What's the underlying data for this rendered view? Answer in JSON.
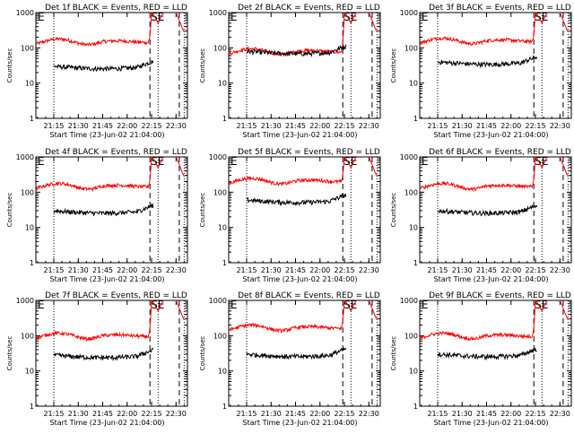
{
  "chart_data": {
    "type": "line",
    "colors": {
      "events": "#000000",
      "lld": "#ff0000",
      "axis": "#000000"
    },
    "layout": "3x3 grid",
    "xlabel": "Start Time (23-Jun-02 21:04:00)",
    "ylabel": "Counts/sec",
    "y_scale": "log",
    "ylim": [
      1,
      1000
    ],
    "y_tick_labels": [
      "1",
      "10",
      "100",
      "1000"
    ],
    "x_tick_labels": [
      "21:15",
      "21:30",
      "21:45",
      "22:00",
      "22:15",
      "22:30"
    ],
    "xlim_minutes_after_start": [
      0,
      93
    ],
    "x_tick_minutes_after_start": [
      11,
      26,
      41,
      56,
      71,
      86
    ],
    "legend": "title",
    "panels": [
      {
        "title": "Det 1f BLACK = Events, RED = LLD",
        "markers": [
          "E",
          "SE"
        ],
        "lld_level": 150,
        "events_level": 30,
        "events_start_min": 11,
        "events_end_min": 72,
        "lld_peak": 1100,
        "dotted_lines_min": [
          11,
          75,
          91
        ],
        "dashed_lines_min": [
          70,
          88
        ]
      },
      {
        "title": "Det 2f BLACK = Events, RED = LLD",
        "markers": [
          "E",
          "SE"
        ],
        "lld_level": 80,
        "events_level": 80,
        "events_start_min": 11,
        "events_end_min": 72,
        "lld_peak": 1100,
        "dotted_lines_min": [
          11,
          75,
          91
        ],
        "dashed_lines_min": [
          70,
          88
        ]
      },
      {
        "title": "Det 3f BLACK = Events, RED = LLD",
        "markers": [
          "E",
          "SE"
        ],
        "lld_level": 160,
        "events_level": 40,
        "events_start_min": 11,
        "events_end_min": 72,
        "lld_peak": 1100,
        "dotted_lines_min": [
          11,
          75,
          91
        ],
        "dashed_lines_min": [
          70,
          88
        ]
      },
      {
        "title": "Det 4f BLACK = Events, RED = LLD",
        "markers": [
          "E",
          "SE"
        ],
        "lld_level": 150,
        "events_level": 30,
        "events_start_min": 11,
        "events_end_min": 72,
        "lld_peak": 1100,
        "dotted_lines_min": [
          11,
          75,
          91
        ],
        "dashed_lines_min": [
          70,
          88
        ]
      },
      {
        "title": "Det 5f BLACK = Events, RED = LLD",
        "markers": [
          "E",
          "SE"
        ],
        "lld_level": 210,
        "events_level": 60,
        "events_start_min": 11,
        "events_end_min": 72,
        "lld_peak": 1100,
        "dotted_lines_min": [
          11,
          75,
          91
        ],
        "dashed_lines_min": [
          70,
          88
        ]
      },
      {
        "title": "Det 6f BLACK = Events, RED = LLD",
        "markers": [
          "E",
          "SE"
        ],
        "lld_level": 150,
        "events_level": 30,
        "events_start_min": 11,
        "events_end_min": 72,
        "lld_peak": 1100,
        "dotted_lines_min": [
          11,
          75,
          91
        ],
        "dashed_lines_min": [
          70,
          88
        ]
      },
      {
        "title": "Det 7f BLACK = Events, RED = LLD",
        "markers": [
          "E",
          "SE"
        ],
        "lld_level": 100,
        "events_level": 28,
        "events_start_min": 11,
        "events_end_min": 72,
        "lld_peak": 1100,
        "dotted_lines_min": [
          11,
          75,
          91
        ],
        "dashed_lines_min": [
          70,
          88
        ]
      },
      {
        "title": "Det 8f BLACK = Events, RED = LLD",
        "markers": [
          "E",
          "SE"
        ],
        "lld_level": 170,
        "events_level": 30,
        "events_start_min": 11,
        "events_end_min": 72,
        "lld_peak": 1100,
        "dotted_lines_min": [
          11,
          75,
          91
        ],
        "dashed_lines_min": [
          70,
          88
        ]
      },
      {
        "title": "Det 9f BLACK = Events, RED = LLD",
        "markers": [
          "E",
          "SE"
        ],
        "lld_level": 100,
        "events_level": 30,
        "events_start_min": 11,
        "events_end_min": 72,
        "lld_peak": 1100,
        "dotted_lines_min": [
          11,
          75,
          91
        ],
        "dashed_lines_min": [
          70,
          88
        ]
      }
    ]
  }
}
